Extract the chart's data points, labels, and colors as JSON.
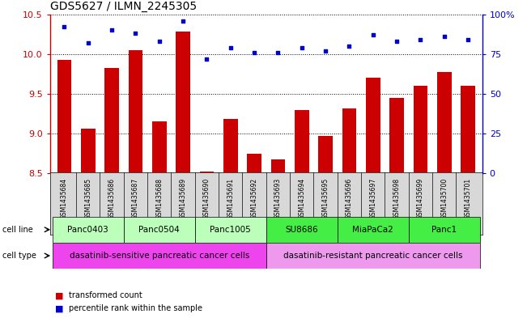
{
  "title": "GDS5627 / ILMN_2245305",
  "samples": [
    "GSM1435684",
    "GSM1435685",
    "GSM1435686",
    "GSM1435687",
    "GSM1435688",
    "GSM1435689",
    "GSM1435690",
    "GSM1435691",
    "GSM1435692",
    "GSM1435693",
    "GSM1435694",
    "GSM1435695",
    "GSM1435696",
    "GSM1435697",
    "GSM1435698",
    "GSM1435699",
    "GSM1435700",
    "GSM1435701"
  ],
  "transformed_count": [
    9.93,
    9.06,
    9.83,
    10.05,
    9.15,
    10.28,
    8.52,
    9.18,
    8.75,
    8.67,
    9.3,
    8.97,
    9.32,
    9.7,
    9.45,
    9.6,
    9.77,
    9.6
  ],
  "percentile_rank": [
    92,
    82,
    90,
    88,
    83,
    96,
    72,
    79,
    76,
    76,
    79,
    77,
    80,
    87,
    83,
    84,
    86,
    84
  ],
  "ylim_left": [
    8.5,
    10.5
  ],
  "ylim_right": [
    0,
    100
  ],
  "yticks_left": [
    8.5,
    9.0,
    9.5,
    10.0,
    10.5
  ],
  "yticks_right": [
    0,
    25,
    50,
    75,
    100
  ],
  "ytick_labels_right": [
    "0",
    "25",
    "50",
    "75",
    "100%"
  ],
  "bar_color": "#cc0000",
  "dot_color": "#0000cc",
  "dot_size": 12,
  "bar_width": 0.6,
  "cell_lines": [
    {
      "name": "Panc0403",
      "start": 0,
      "end": 3,
      "color": "#bbffbb"
    },
    {
      "name": "Panc0504",
      "start": 3,
      "end": 6,
      "color": "#bbffbb"
    },
    {
      "name": "Panc1005",
      "start": 6,
      "end": 9,
      "color": "#bbffbb"
    },
    {
      "name": "SU8686",
      "start": 9,
      "end": 12,
      "color": "#44ee44"
    },
    {
      "name": "MiaPaCa2",
      "start": 12,
      "end": 15,
      "color": "#44ee44"
    },
    {
      "name": "Panc1",
      "start": 15,
      "end": 18,
      "color": "#44ee44"
    }
  ],
  "cell_types": [
    {
      "name": "dasatinib-sensitive pancreatic cancer cells",
      "start": 0,
      "end": 9,
      "color": "#ee44ee"
    },
    {
      "name": "dasatinib-resistant pancreatic cancer cells",
      "start": 9,
      "end": 18,
      "color": "#ee99ee"
    }
  ],
  "sample_bg_color": "#d8d8d8",
  "sample_label_fontsize": 5.5,
  "legend_items": [
    {
      "label": "transformed count",
      "color": "#cc0000"
    },
    {
      "label": "percentile rank within the sample",
      "color": "#0000cc"
    }
  ],
  "background_color": "#ffffff",
  "tick_color_left": "#cc0000",
  "tick_color_right": "#0000cc",
  "grid_linestyle": ":",
  "grid_linewidth": 0.7,
  "cell_line_fontsize": 7.5,
  "cell_type_fontsize": 7.5,
  "row_label_fontsize": 7,
  "legend_fontsize": 7,
  "title_fontsize": 10
}
